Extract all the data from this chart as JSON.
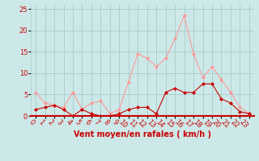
{
  "hours": [
    0,
    1,
    2,
    3,
    4,
    5,
    6,
    7,
    8,
    9,
    10,
    11,
    12,
    13,
    14,
    15,
    16,
    17,
    18,
    19,
    20,
    21,
    22,
    23
  ],
  "wind_avg": [
    1.5,
    2.0,
    2.5,
    1.5,
    0.0,
    1.5,
    0.5,
    0.0,
    0.0,
    0.5,
    1.5,
    2.0,
    2.0,
    0.5,
    5.5,
    6.5,
    5.5,
    5.5,
    7.5,
    7.5,
    4.0,
    3.0,
    1.0,
    0.5
  ],
  "wind_gust": [
    5.5,
    3.0,
    2.5,
    2.0,
    5.5,
    1.5,
    3.0,
    3.5,
    0.5,
    1.5,
    8.0,
    14.5,
    13.5,
    11.5,
    13.5,
    18.0,
    23.5,
    14.5,
    9.0,
    11.5,
    8.5,
    5.5,
    2.0,
    0.5
  ],
  "color_avg": "#cc0000",
  "color_gust": "#ff9999",
  "bg_color": "#cce8e8",
  "grid_color": "#aacccc",
  "axis_color": "#cc0000",
  "spine_color": "#cc0000",
  "xlabel": "Vent moyen/en rafales ( km/h )",
  "ylim": [
    0,
    26
  ],
  "yticks": [
    0,
    5,
    10,
    15,
    20,
    25
  ],
  "marker": "D",
  "markersize": 2,
  "linewidth": 0.8,
  "xlabel_fontsize": 7,
  "tick_fontsize": 6
}
